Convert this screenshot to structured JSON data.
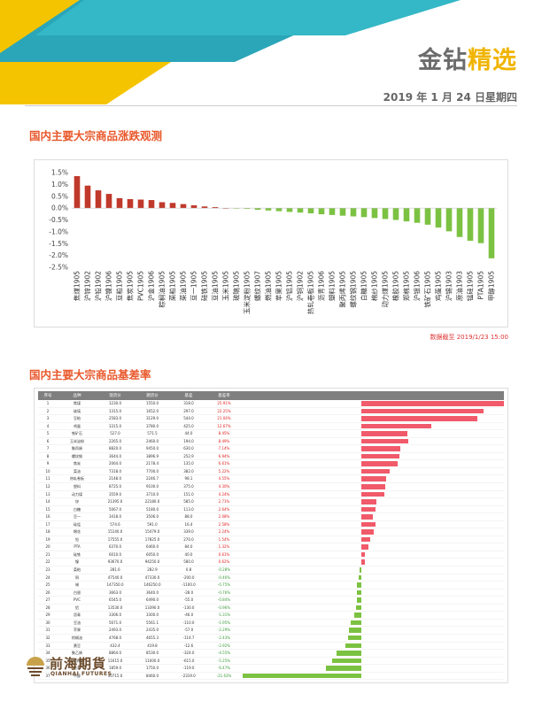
{
  "header": {
    "brand_part1": "金钻",
    "brand_part2": "精选",
    "date": "2019 年 1 月 24 日星期四"
  },
  "section1": {
    "title": "国内主要大宗商品涨跌观测",
    "note": "数据截至 2019/1/23 15:00"
  },
  "chart_data": {
    "type": "bar",
    "title": "",
    "xlabel": "",
    "ylabel": "",
    "ylim": [
      -2.5,
      1.5
    ],
    "yticks": [
      "1.5%",
      "1.0%",
      "0.5%",
      "0.0%",
      "-0.5%",
      "-1.0%",
      "-1.5%",
      "-2.0%",
      "-2.5%"
    ],
    "grid": false,
    "categories": [
      "焦煤1905",
      "沪锌1902",
      "沪铅1902",
      "沪镍1906",
      "豆粕1905",
      "焦炭1905",
      "PVC1905",
      "沪金1906",
      "棕榈油1905",
      "菜粕1905",
      "菜油1905",
      "豆一1905",
      "硅铁1905",
      "豆油1905",
      "玉米1905",
      "玻璃1905",
      "玉米淀粉1905",
      "螺纹1907",
      "燃油1905",
      "苹果1905",
      "沪铝1905",
      "沪铜1902",
      "热轧卷板1905",
      "沥青1906",
      "塑料1905",
      "聚丙烯1905",
      "螺纹钢1905",
      "白糖1905",
      "棉纱1905",
      "动力煤1905",
      "橡胶1905",
      "郑棉1905",
      "沪银1906",
      "铁矿石1905",
      "鸡蛋1905",
      "沪锡1903",
      "原油1903",
      "锰硅1905",
      "PTA1905",
      "甲醇1905"
    ],
    "values": [
      1.35,
      0.95,
      0.75,
      0.6,
      0.42,
      0.38,
      0.36,
      0.34,
      0.25,
      0.22,
      0.17,
      0.12,
      0.07,
      0.04,
      0.0,
      -0.01,
      -0.03,
      -0.07,
      -0.1,
      -0.13,
      -0.16,
      -0.19,
      -0.22,
      -0.26,
      -0.29,
      -0.32,
      -0.35,
      -0.38,
      -0.42,
      -0.46,
      -0.5,
      -0.56,
      -0.62,
      -0.7,
      -0.82,
      -0.98,
      -1.22,
      -1.38,
      -1.48,
      -2.12
    ],
    "colors": {
      "up": "#c0392b",
      "down": "#7cc242"
    }
  },
  "section2": {
    "title": "国内主要大宗商品基差率",
    "table": {
      "headers": [
        "序号",
        "品种",
        "现货价",
        "期货价",
        "基差",
        "基差率"
      ],
      "rows": [
        [
          "1",
          "焦煤",
          "1230.0",
          "1550.0",
          "318.0",
          "25.91%",
          25.91
        ],
        [
          "2",
          "玻璃",
          "1315.0",
          "1652.0",
          "297.0",
          "22.25%",
          22.25
        ],
        [
          "3",
          "豆粕",
          "2583.0",
          "3129.0",
          "544.0",
          "21.04%",
          21.04
        ],
        [
          "4",
          "鸡蛋",
          "3315.0",
          "3780.0",
          "425.0",
          "12.67%",
          12.67
        ],
        [
          "5",
          "铁矿石",
          "527.0",
          "571.5",
          "44.0",
          "8.45%",
          8.45
        ],
        [
          "6",
          "玉米淀粉",
          "2265.0",
          "2460.0",
          "194.0",
          "8.49%",
          8.49
        ],
        [
          "7",
          "聚丙烯",
          "8820.0",
          "9450.0",
          "630.0",
          "7.14%",
          7.14
        ],
        [
          "8",
          "螺纹钢",
          "3644.0",
          "3896.9",
          "252.9",
          "6.94%",
          6.94
        ],
        [
          "9",
          "焦炭",
          "2064.0",
          "2178.4",
          "135.0",
          "6.61%",
          6.61
        ],
        [
          "10",
          "菜油",
          "7318.0",
          "7700.0",
          "382.0",
          "5.22%",
          5.22
        ],
        [
          "11",
          "热轧卷板",
          "2148.0",
          "2246.7",
          "98.1",
          "4.55%",
          4.55
        ],
        [
          "12",
          "塑料",
          "8725.0",
          "9100.0",
          "375.0",
          "4.30%",
          4.3
        ],
        [
          "13",
          "动力煤",
          "3559.0",
          "3710.0",
          "151.0",
          "4.24%",
          4.24
        ],
        [
          "14",
          "锌",
          "21395.0",
          "22180.0",
          "585.0",
          "2.71%",
          2.71
        ],
        [
          "15",
          "白糖",
          "5067.0",
          "5180.0",
          "113.0",
          "2.64%",
          2.64
        ],
        [
          "16",
          "豆一",
          "3418.0",
          "3506.0",
          "88.0",
          "2.08%",
          2.08
        ],
        [
          "17",
          "硅锰",
          "574.6",
          "591.0",
          "16.4",
          "2.58%",
          2.58
        ],
        [
          "18",
          "棉花",
          "15140.0",
          "15479.0",
          "339.0",
          "2.24%",
          2.24
        ],
        [
          "19",
          "铅",
          "17555.0",
          "17825.0",
          "270.0",
          "1.54%",
          1.54
        ],
        [
          "20",
          "PTA",
          "6370.0",
          "6460.0",
          "84.0",
          "1.32%",
          1.32
        ],
        [
          "21",
          "硅铁",
          "6010.0",
          "6050.0",
          "40.0",
          "0.61%",
          0.61
        ],
        [
          "22",
          "镍",
          "93670.0",
          "94250.0",
          "580.0",
          "0.62%",
          0.62
        ],
        [
          "23",
          "菜粕",
          "281.6",
          "282.9",
          "0.8",
          "-0.28%",
          -0.28
        ],
        [
          "24",
          "铜",
          "47540.0",
          "47330.0",
          "-200.0",
          "-0.46%",
          -0.46
        ],
        [
          "25",
          "锡",
          "147350.0",
          "146250.0",
          "-1100.0",
          "-0.75%",
          -0.75
        ],
        [
          "26",
          "白银",
          "3663.0",
          "3640.0",
          "-28.0",
          "-0.76%",
          -0.76
        ],
        [
          "27",
          "PVC",
          "6545.0",
          "6490.0",
          "-55.0",
          "-0.84%",
          -0.84
        ],
        [
          "28",
          "铝",
          "13530.0",
          "13390.0",
          "-130.0",
          "-0.96%",
          -0.96
        ],
        [
          "29",
          "沥青",
          "3306.0",
          "3300.0",
          "-46.0",
          "-1.31%",
          -1.31
        ],
        [
          "30",
          "豆油",
          "5671.0",
          "5561.1",
          "-110.0",
          "-1.95%",
          -1.95
        ],
        [
          "31",
          "苹果",
          "2493.0",
          "2435.0",
          "-57.0",
          "-2.29%",
          -2.29
        ],
        [
          "32",
          "棕榈油",
          "4768.0",
          "4655.3",
          "-114.7",
          "-2.43%",
          -2.43
        ],
        [
          "33",
          "黄豆",
          "432.4",
          "419.8",
          "-12.6",
          "-2.92%",
          -2.92
        ],
        [
          "34",
          "聚乙烯",
          "8864.0",
          "8530.0",
          "-324.0",
          "-4.55%",
          -4.55
        ],
        [
          "35",
          "天然橡胶",
          "11615.0",
          "11000.0",
          "-615.0",
          "-5.25%",
          -5.25
        ],
        [
          "36",
          "玉米",
          "1859.0",
          "1750.0",
          "-119.0",
          "-6.47%",
          -6.47
        ],
        [
          "37",
          "甲醇",
          "10715.0",
          "8460.0",
          "-2319.0",
          "-21.63%",
          -21.63
        ]
      ]
    },
    "colors": {
      "pos": "#f05a6a",
      "neg": "#7cc242"
    }
  },
  "footer": {
    "logo_cn": "前海期貨",
    "logo_en": "QIANHAI FUTURES"
  }
}
